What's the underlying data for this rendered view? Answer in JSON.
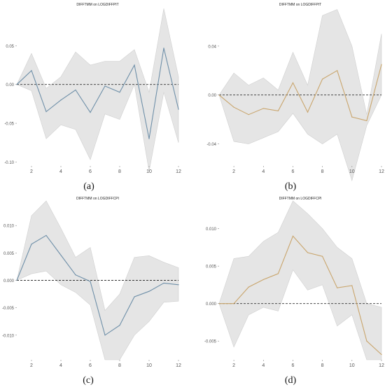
{
  "figure": {
    "panels": [
      {
        "label": "(a)"
      },
      {
        "label": "(b)"
      },
      {
        "label": "(c)"
      },
      {
        "label": "(d)"
      }
    ]
  },
  "colors": {
    "band": "#e5e5e5",
    "band_edge": "#cfcfcf",
    "zero_line": "#333333",
    "axis_text": "#555555",
    "blue_line": "#6e8fa8",
    "orange_line": "#c9a56c"
  },
  "chart_data": [
    {
      "type": "line",
      "title": "DIFFTMM on LOGDIFFPIT",
      "xlabel": "",
      "ylabel": "",
      "x": [
        1,
        2,
        3,
        4,
        5,
        6,
        7,
        8,
        9,
        10,
        11,
        12
      ],
      "xticks": [
        2,
        4,
        6,
        8,
        10,
        12
      ],
      "xlim": [
        1,
        12
      ],
      "ylim": [
        -0.105,
        0.1
      ],
      "yticks": [
        -0.1,
        -0.05,
        0.0,
        0.05
      ],
      "ytick_labels": [
        "-0.10",
        "-0.05",
        "0.00",
        "0.05"
      ],
      "zero_line": true,
      "series": [
        {
          "color": "blue_line",
          "values": [
            0.0,
            0.018,
            -0.035,
            -0.02,
            -0.007,
            -0.036,
            -0.002,
            -0.01,
            0.025,
            -0.07,
            0.047,
            -0.032
          ]
        }
      ],
      "band": {
        "upper": [
          0.0,
          0.04,
          -0.005,
          0.01,
          0.042,
          0.025,
          0.03,
          0.03,
          0.045,
          -0.01,
          0.098,
          0.01
        ],
        "lower": [
          0.0,
          -0.008,
          -0.07,
          -0.052,
          -0.058,
          -0.097,
          -0.038,
          -0.045,
          0.0,
          -0.112,
          -0.01,
          -0.075
        ]
      }
    },
    {
      "type": "line",
      "title": "DIFFTMM on LOGDIFFPIT",
      "xlabel": "",
      "ylabel": "",
      "x": [
        1,
        2,
        3,
        4,
        5,
        6,
        7,
        8,
        9,
        10,
        11,
        12
      ],
      "xticks": [
        2,
        4,
        6,
        8,
        10,
        12
      ],
      "xlim": [
        1,
        12
      ],
      "ylim": [
        -0.058,
        0.072
      ],
      "yticks": [
        -0.04,
        0.0,
        0.04
      ],
      "ytick_labels": [
        "-0.04",
        "0.00",
        "0.04"
      ],
      "zero_line": true,
      "series": [
        {
          "color": "orange_line",
          "values": [
            0.0,
            -0.01,
            -0.016,
            -0.011,
            -0.013,
            0.01,
            -0.014,
            0.013,
            0.02,
            -0.018,
            -0.021,
            0.025
          ]
        }
      ],
      "band": {
        "upper": [
          0.0,
          0.018,
          0.008,
          0.014,
          0.004,
          0.035,
          0.008,
          0.065,
          0.07,
          0.04,
          -0.016,
          0.05
        ],
        "lower": [
          0.0,
          -0.038,
          -0.04,
          -0.035,
          -0.03,
          -0.015,
          -0.032,
          -0.04,
          -0.032,
          -0.07,
          -0.025,
          0.0
        ]
      }
    },
    {
      "type": "line",
      "title": "DIFFTMM on LOGDIFFCPI",
      "xlabel": "",
      "ylabel": "",
      "x": [
        1,
        2,
        3,
        4,
        5,
        6,
        7,
        8,
        9,
        10,
        11,
        12
      ],
      "xticks": [
        2,
        4,
        6,
        8,
        10,
        12
      ],
      "xlim": [
        1,
        12
      ],
      "ylim": [
        -0.0145,
        0.0145
      ],
      "yticks": [
        -0.01,
        -0.005,
        0.0,
        0.005,
        0.01
      ],
      "ytick_labels": [
        "-0.010",
        "-0.005",
        "0.000",
        "0.005",
        "0.010"
      ],
      "zero_line": true,
      "series": [
        {
          "color": "blue_line",
          "values": [
            0.0,
            0.0066,
            0.0082,
            0.0046,
            0.001,
            -0.0002,
            -0.01,
            -0.0082,
            -0.003,
            -0.002,
            -0.0005,
            -0.0008
          ]
        }
      ],
      "band": {
        "upper": [
          0.0,
          0.0118,
          0.0145,
          0.0095,
          0.0042,
          0.006,
          -0.0055,
          -0.0025,
          0.0042,
          0.0045,
          0.0033,
          0.0023
        ],
        "lower": [
          0.0,
          0.0012,
          0.0017,
          -0.0008,
          -0.0022,
          -0.0045,
          -0.0145,
          -0.0145,
          -0.01,
          -0.0075,
          -0.004,
          -0.0038
        ]
      }
    },
    {
      "type": "line",
      "title": "DIFFTMM on LOGDIFFCPI",
      "xlabel": "",
      "ylabel": "",
      "x": [
        1,
        2,
        3,
        4,
        5,
        6,
        7,
        8,
        9,
        10,
        11,
        12
      ],
      "xticks": [
        2,
        4,
        6,
        8,
        10,
        12
      ],
      "xlim": [
        1,
        12
      ],
      "ylim": [
        -0.0075,
        0.0137
      ],
      "yticks": [
        -0.005,
        0.0,
        0.005,
        0.01
      ],
      "ytick_labels": [
        "-0.005",
        "0.000",
        "0.005",
        "0.010"
      ],
      "zero_line": true,
      "series": [
        {
          "color": "orange_line",
          "values": [
            0.0,
            0.0,
            0.0022,
            0.0032,
            0.004,
            0.009,
            0.0068,
            0.0063,
            0.0021,
            0.0024,
            -0.005,
            -0.0068
          ]
        }
      ],
      "band": {
        "upper": [
          0.0,
          0.006,
          0.0063,
          0.0083,
          0.0095,
          0.0137,
          0.012,
          0.01,
          0.0075,
          0.006,
          0.0,
          -0.0005
        ],
        "lower": [
          0.0,
          -0.0058,
          -0.0015,
          -0.0005,
          -0.001,
          0.0045,
          0.0018,
          0.0025,
          -0.003,
          -0.0015,
          -0.0075,
          -0.0075
        ]
      }
    }
  ]
}
